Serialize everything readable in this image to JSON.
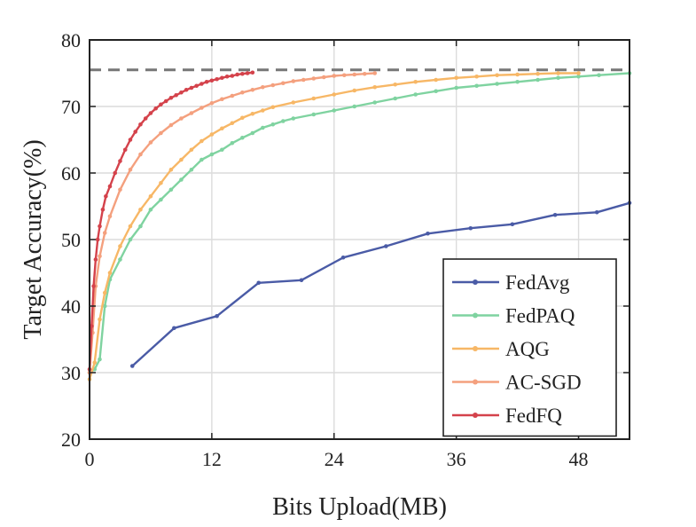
{
  "chart_data": {
    "type": "line",
    "title": "",
    "xlabel": "Bits Upload(MB)",
    "ylabel": "Target Accuracy(%)",
    "xlim": [
      0,
      53
    ],
    "ylim": [
      20,
      80
    ],
    "xticks": [
      0,
      12,
      24,
      36,
      48
    ],
    "yticks": [
      20,
      30,
      40,
      50,
      60,
      70,
      80
    ],
    "grid": true,
    "legend_position": "bottom-right",
    "target_line": {
      "y": 75.5,
      "color": "#777777",
      "style": "dashed"
    },
    "series": [
      {
        "name": "FedAvg",
        "color": "#4a5ba6",
        "x": [
          4.2,
          8.3,
          12.5,
          16.6,
          20.8,
          24.9,
          29.1,
          33.2,
          37.4,
          41.5,
          45.7,
          49.8,
          53
        ],
        "y": [
          31.0,
          36.7,
          38.5,
          43.5,
          43.9,
          47.3,
          49.0,
          50.9,
          51.7,
          52.3,
          53.7,
          54.1,
          55.5
        ]
      },
      {
        "name": "FedPAQ",
        "color": "#7fd3a0",
        "x": [
          0,
          0.5,
          1,
          1.5,
          2,
          3,
          4,
          5,
          6,
          7,
          8,
          9,
          10,
          11,
          12,
          13,
          14,
          15,
          16,
          17,
          18,
          19,
          20,
          22,
          24,
          26,
          28,
          30,
          32,
          34,
          36,
          38,
          40,
          42,
          44,
          46,
          48,
          50,
          53
        ],
        "y": [
          30.0,
          30.5,
          32.0,
          40.0,
          44.0,
          47.0,
          50.0,
          52.0,
          54.5,
          56.0,
          57.5,
          59.0,
          60.5,
          62.0,
          62.8,
          63.5,
          64.5,
          65.3,
          66.0,
          66.8,
          67.3,
          67.8,
          68.2,
          68.8,
          69.4,
          70.0,
          70.6,
          71.2,
          71.8,
          72.3,
          72.8,
          73.1,
          73.4,
          73.7,
          74.0,
          74.3,
          74.5,
          74.7,
          75.0
        ]
      },
      {
        "name": "AQG",
        "color": "#f7b766",
        "x": [
          0,
          0.5,
          1,
          1.5,
          2,
          3,
          4,
          5,
          6,
          7,
          8,
          9,
          10,
          11,
          12,
          13,
          14,
          15,
          16,
          17,
          18,
          20,
          22,
          24,
          26,
          28,
          30,
          32,
          34,
          36,
          38,
          40,
          42,
          44,
          46,
          48
        ],
        "y": [
          29.0,
          31.5,
          38.0,
          42.0,
          45.0,
          49.0,
          52.0,
          54.5,
          56.5,
          58.5,
          60.5,
          62.0,
          63.5,
          64.8,
          65.8,
          66.7,
          67.5,
          68.3,
          68.9,
          69.4,
          69.9,
          70.6,
          71.2,
          71.8,
          72.4,
          72.9,
          73.3,
          73.7,
          74.0,
          74.3,
          74.5,
          74.7,
          74.8,
          74.9,
          75.0,
          75.0
        ]
      },
      {
        "name": "AC-SGD",
        "color": "#f4a07e",
        "x": [
          0,
          0.3,
          0.6,
          1,
          1.5,
          2,
          3,
          4,
          5,
          6,
          7,
          8,
          9,
          10,
          11,
          12,
          13,
          14,
          15,
          16,
          17,
          18,
          19,
          20,
          21,
          22,
          23,
          24,
          25,
          26,
          27,
          28
        ],
        "y": [
          30.0,
          36.0,
          43.0,
          47.5,
          51.0,
          53.5,
          57.5,
          60.5,
          62.8,
          64.6,
          66.0,
          67.2,
          68.2,
          69.0,
          69.8,
          70.5,
          71.1,
          71.6,
          72.1,
          72.5,
          72.9,
          73.2,
          73.5,
          73.8,
          74.0,
          74.2,
          74.4,
          74.6,
          74.7,
          74.8,
          74.9,
          75.0
        ]
      },
      {
        "name": "FedFQ",
        "color": "#d4424b",
        "x": [
          0,
          0.2,
          0.4,
          0.6,
          0.8,
          1,
          1.3,
          1.6,
          2,
          2.5,
          3,
          3.5,
          4,
          4.5,
          5,
          5.5,
          6,
          6.5,
          7,
          7.5,
          8,
          8.5,
          9,
          9.5,
          10,
          10.5,
          11,
          11.5,
          12,
          12.5,
          13,
          13.5,
          14,
          14.5,
          15,
          15.5,
          16
        ],
        "y": [
          30.5,
          37.0,
          43.0,
          47.0,
          50.0,
          52.0,
          54.5,
          56.5,
          58.0,
          60.0,
          61.8,
          63.5,
          65.0,
          66.2,
          67.3,
          68.2,
          69.0,
          69.7,
          70.3,
          70.8,
          71.3,
          71.7,
          72.1,
          72.5,
          72.8,
          73.1,
          73.4,
          73.7,
          73.9,
          74.1,
          74.3,
          74.5,
          74.6,
          74.8,
          74.9,
          75.0,
          75.1
        ]
      }
    ]
  }
}
